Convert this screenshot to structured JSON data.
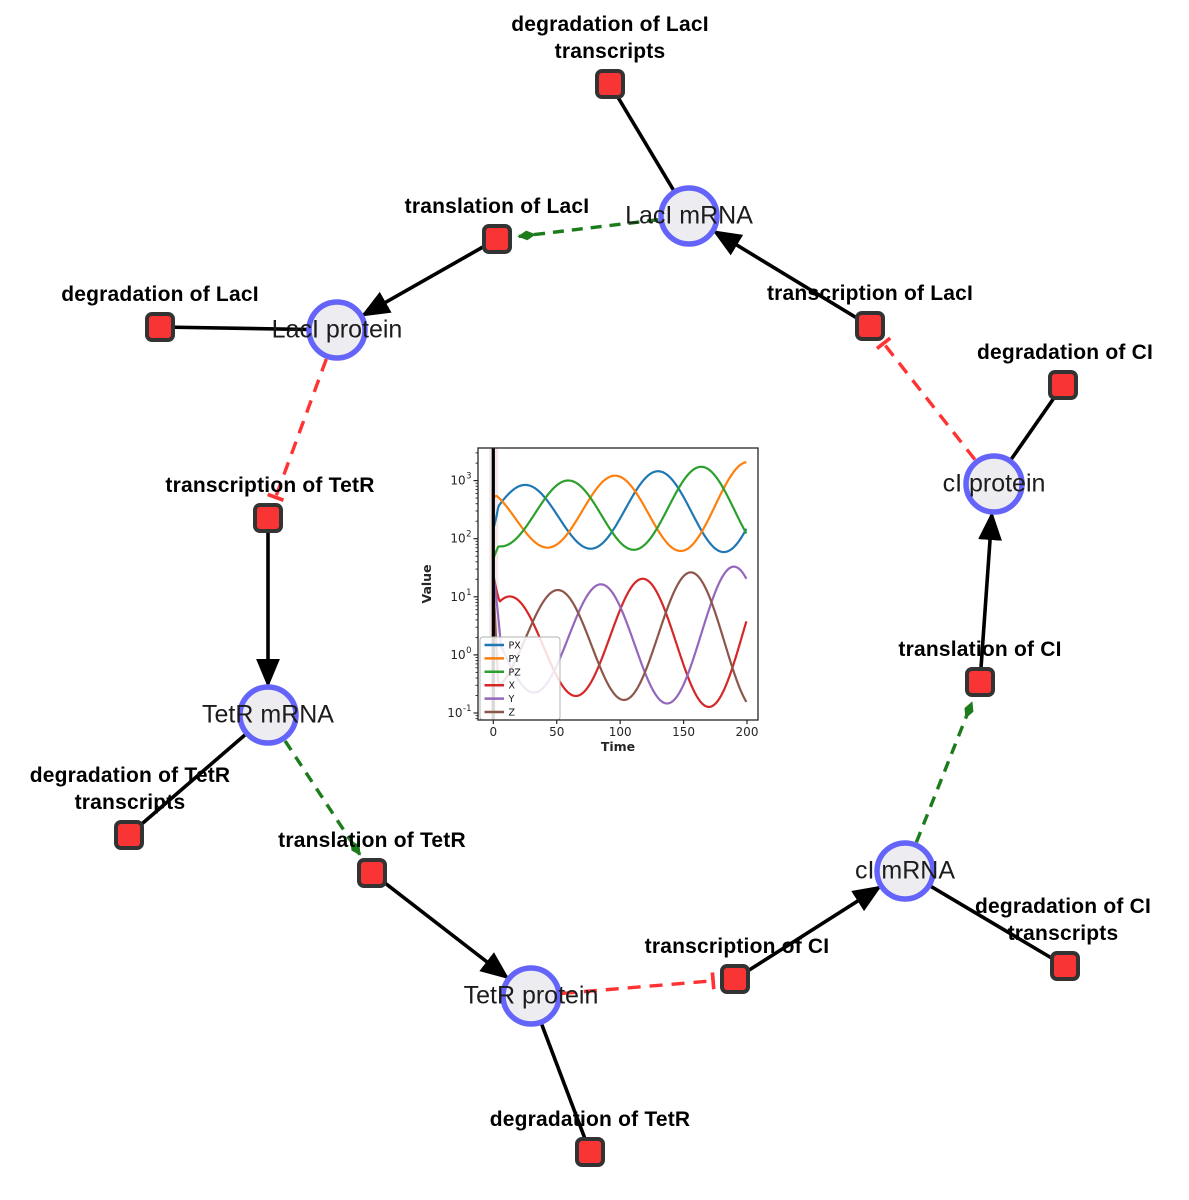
{
  "figure": {
    "background": "#ffffff",
    "description": "Repressilator gene regulatory network with simulation inset"
  },
  "diagram": {
    "style": {
      "species_fill": "#ededf1",
      "species_border": "#6464fa",
      "reaction_fill": "#f93434",
      "reaction_border": "#333333",
      "edge_color": "#000000",
      "modifier_edge_color": "#1c7c1c",
      "inhibition_edge_color": "#ff3333"
    },
    "species": [
      {
        "id": "laci-mrna",
        "label": "LacI mRNA"
      },
      {
        "id": "laci-protein",
        "label": "LacI protein"
      },
      {
        "id": "tetr-mrna",
        "label": "TetR mRNA"
      },
      {
        "id": "tetr-protein",
        "label": "TetR protein"
      },
      {
        "id": "ci-mrna",
        "label": "cI mRNA"
      },
      {
        "id": "ci-protein",
        "label": "cI protein"
      }
    ],
    "reactions": [
      {
        "id": "degradation-laci-transcripts",
        "lines": [
          "degradation of LacI",
          "transcripts"
        ]
      },
      {
        "id": "translation-laci",
        "lines": [
          "translation of LacI"
        ]
      },
      {
        "id": "degradation-laci",
        "lines": [
          "degradation of LacI"
        ]
      },
      {
        "id": "transcription-laci",
        "lines": [
          "transcription of LacI"
        ]
      },
      {
        "id": "transcription-tetr",
        "lines": [
          "transcription of TetR"
        ]
      },
      {
        "id": "degradation-tetr-transcripts",
        "lines": [
          "degradation of TetR",
          "transcripts"
        ]
      },
      {
        "id": "translation-tetr",
        "lines": [
          "translation of TetR"
        ]
      },
      {
        "id": "degradation-tetr",
        "lines": [
          "degradation of TetR"
        ]
      },
      {
        "id": "transcription-ci",
        "lines": [
          "transcription of CI"
        ]
      },
      {
        "id": "degradation-ci-transcripts",
        "lines": [
          "degradation of CI",
          "transcripts"
        ]
      },
      {
        "id": "translation-ci",
        "lines": [
          "translation of CI"
        ]
      },
      {
        "id": "degradation-ci",
        "lines": [
          "degradation of CI"
        ]
      }
    ],
    "edges": [
      {
        "type": "reactant",
        "from": "laci-mrna",
        "to": "degradation-laci-transcripts"
      },
      {
        "type": "reactant",
        "from": "laci-protein",
        "to": "degradation-laci"
      },
      {
        "type": "reactant",
        "from": "tetr-mrna",
        "to": "degradation-tetr-transcripts"
      },
      {
        "type": "reactant",
        "from": "tetr-protein",
        "to": "degradation-tetr"
      },
      {
        "type": "reactant",
        "from": "ci-mrna",
        "to": "degradation-ci-transcripts"
      },
      {
        "type": "reactant",
        "from": "ci-protein",
        "to": "degradation-ci"
      },
      {
        "type": "product",
        "from": "transcription-laci",
        "to": "laci-mrna"
      },
      {
        "type": "product",
        "from": "translation-laci",
        "to": "laci-protein"
      },
      {
        "type": "product",
        "from": "transcription-tetr",
        "to": "tetr-mrna"
      },
      {
        "type": "product",
        "from": "translation-tetr",
        "to": "tetr-protein"
      },
      {
        "type": "product",
        "from": "transcription-ci",
        "to": "ci-mrna"
      },
      {
        "type": "product",
        "from": "translation-ci",
        "to": "ci-protein"
      },
      {
        "type": "modifier",
        "from": "laci-mrna",
        "to": "translation-laci"
      },
      {
        "type": "modifier",
        "from": "tetr-mrna",
        "to": "translation-tetr"
      },
      {
        "type": "modifier",
        "from": "ci-mrna",
        "to": "translation-ci"
      },
      {
        "type": "inhibitor",
        "from": "laci-protein",
        "to": "transcription-tetr"
      },
      {
        "type": "inhibitor",
        "from": "tetr-protein",
        "to": "transcription-ci"
      },
      {
        "type": "inhibitor",
        "from": "ci-protein",
        "to": "transcription-laci"
      }
    ]
  },
  "chart_data": {
    "type": "line",
    "title": "",
    "xlabel": "Time",
    "ylabel": "Value",
    "yscale": "log",
    "xlim": [
      -12,
      209
    ],
    "ylim": [
      0.076,
      3650
    ],
    "x_ticks": [
      0,
      50,
      100,
      150,
      200
    ],
    "y_tick_exponents": [
      -1,
      0,
      1,
      2,
      3
    ],
    "grid": false,
    "legend_position": "lower left",
    "start_marker_x": 0,
    "oscillation_period": 105,
    "series": [
      {
        "name": "PX",
        "color": "#1f77b4",
        "band": "protein",
        "peak_time": 24,
        "start_value": 150,
        "ramp_in": 4,
        "approx_extrema": {
          "peaks": [
            [
              25,
              800
            ],
            [
              122,
              1700
            ]
          ],
          "troughs": [
            [
              60,
              70
            ],
            [
              185,
              57
            ]
          ]
        }
      },
      {
        "name": "PY",
        "color": "#ff7f0e",
        "band": "protein",
        "peak_time": -10,
        "start_value": 500,
        "ramp_in": 3,
        "approx_extrema": {
          "peaks": [
            [
              7,
              620
            ],
            [
              90,
              1400
            ],
            [
              200,
              2100
            ]
          ],
          "troughs": [
            [
              40,
              90
            ],
            [
              150,
              60
            ]
          ]
        }
      },
      {
        "name": "PZ",
        "color": "#2ca02c",
        "band": "protein",
        "peak_time": -47,
        "start_value": 45,
        "ramp_in": 4,
        "approx_extrema": {
          "peaks": [
            [
              58,
              1050
            ],
            [
              163,
              2000
            ]
          ],
          "troughs": [
            [
              13,
              120
            ],
            [
              116,
              65
            ]
          ]
        }
      },
      {
        "name": "X",
        "color": "#d62728",
        "band": "mrna",
        "peak_time": 12,
        "start_value": 24,
        "ramp_in": 5,
        "approx_extrema": {
          "peaks": [
            [
              20,
              9.5
            ],
            [
              117,
              25
            ]
          ],
          "troughs": [
            [
              63,
              0.25
            ],
            [
              168,
              0.13
            ]
          ]
        }
      },
      {
        "name": "Y",
        "color": "#9467bd",
        "band": "mrna",
        "peak_time": 84,
        "start_value": 25,
        "ramp_in": 6,
        "approx_extrema": {
          "peaks": [
            [
              82,
              19
            ],
            [
              192,
              28
            ]
          ],
          "troughs": [
            [
              28,
              0.35
            ],
            [
              133,
              0.15
            ]
          ]
        }
      },
      {
        "name": "Z",
        "color": "#8c564b",
        "band": "mrna",
        "peak_time": 50,
        "start_value": 18,
        "ramp_in": 4,
        "approx_extrema": {
          "peaks": [
            [
              50,
              15
            ],
            [
              155,
              28
            ]
          ],
          "troughs": [
            [
              8,
              0.1
            ],
            [
              95,
              0.2
            ]
          ]
        }
      }
    ],
    "bands": {
      "protein": {
        "log_center_start": 2.37,
        "log_center_end": 2.54,
        "log_amp_start": 0.5,
        "log_amp_end": 0.78
      },
      "mrna": {
        "log_center_start": 0.19,
        "log_center_end": 0.3,
        "log_amp_start": 0.78,
        "log_amp_end": 1.25
      }
    }
  }
}
